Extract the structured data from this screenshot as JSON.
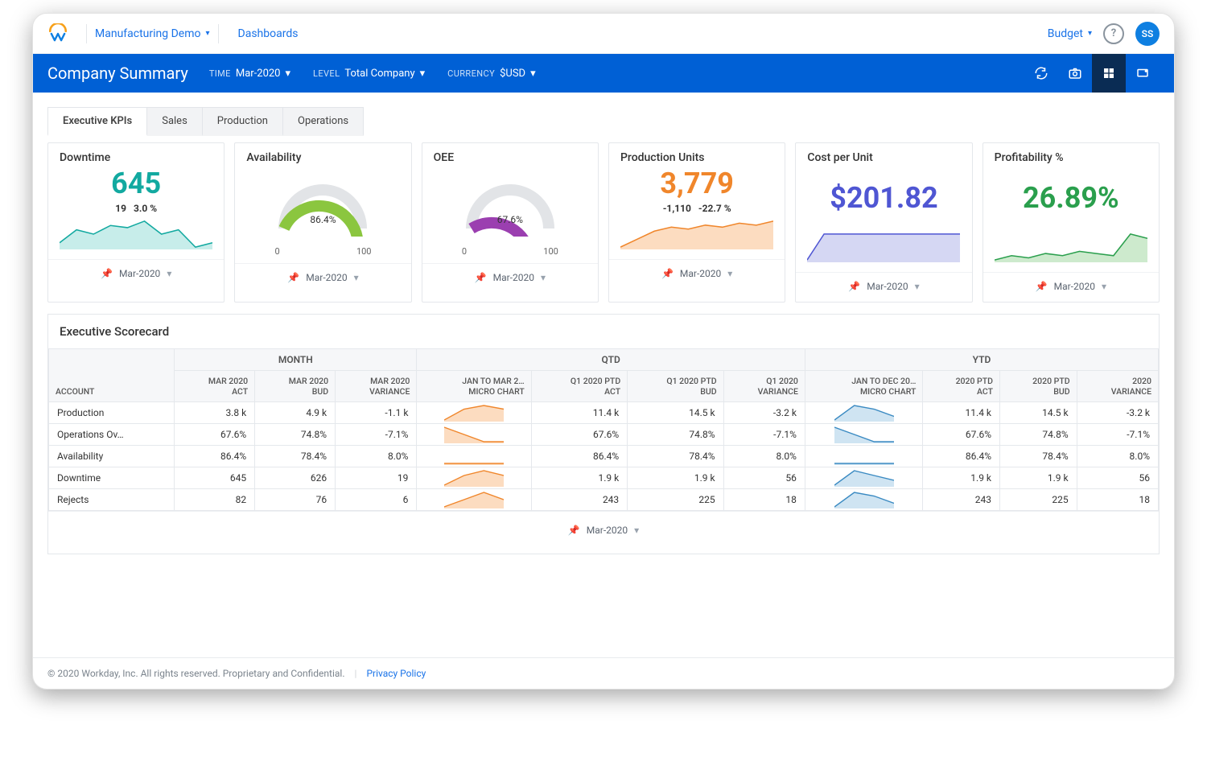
{
  "header": {
    "demo_label": "Manufacturing Demo",
    "crumb": "Dashboards",
    "budget_label": "Budget",
    "avatar_initials": "SS"
  },
  "bluebar": {
    "title": "Company Summary",
    "filter_time_label": "TIME",
    "filter_time_value": "Mar-2020",
    "filter_level_label": "LEVEL",
    "filter_level_value": "Total Company",
    "filter_currency_label": "CURRENCY",
    "filter_currency_value": "$USD"
  },
  "tabs": [
    {
      "label": "Executive KPIs",
      "active": true
    },
    {
      "label": "Sales",
      "active": false
    },
    {
      "label": "Production",
      "active": false
    },
    {
      "label": "Operations",
      "active": false
    }
  ],
  "kpi_footer": {
    "pin_color": "#1a73e8",
    "period": "Mar-2020"
  },
  "kpi": {
    "downtime": {
      "title": "Downtime",
      "value": "645",
      "color": "#12a9a0",
      "delta_abs": "19",
      "delta_pct": "3.0 %",
      "spark": {
        "points": [
          20,
          26,
          24,
          28,
          27,
          30,
          24,
          26,
          18,
          20
        ],
        "stroke": "#12a9a0",
        "fill": "#c7edea"
      }
    },
    "availability": {
      "title": "Availability",
      "value": "86.4%",
      "gauge_pct": 86.4,
      "gauge_fill": "#8bc63f",
      "gauge_track": "#e2e4e7",
      "tick_min": "0",
      "tick_max": "100"
    },
    "oee": {
      "title": "OEE",
      "value": "67.6%",
      "gauge_pct": 67.6,
      "gauge_fill": "#9b3fb0",
      "gauge_track": "#e2e4e7",
      "tick_min": "0",
      "tick_max": "100"
    },
    "units": {
      "title": "Production Units",
      "value": "3,779",
      "color": "#f0862b",
      "delta_abs": "-1,110",
      "delta_pct": "-22.7 %",
      "spark": {
        "points": [
          18,
          22,
          26,
          28,
          27,
          29,
          28,
          30,
          29,
          31
        ],
        "stroke": "#f0862b",
        "fill": "#fcdcc0"
      }
    },
    "cost": {
      "title": "Cost per Unit",
      "value": "$201.82",
      "color": "#4f56d3",
      "spark": {
        "points": [
          8,
          26,
          26,
          26,
          26,
          26,
          26,
          26,
          26,
          26
        ],
        "stroke": "#4f56d3",
        "fill": "#d5d7f3"
      }
    },
    "profit": {
      "title": "Profitability %",
      "value": "26.89%",
      "color": "#2a9f4d",
      "spark": {
        "points": [
          18,
          20,
          19,
          21,
          20,
          22,
          21,
          20,
          30,
          28
        ],
        "stroke": "#2a9f4d",
        "fill": "#cdeacd"
      }
    }
  },
  "scorecard": {
    "title": "Executive Scorecard",
    "groups": [
      "MONTH",
      "QTD",
      "YTD"
    ],
    "account_header": "ACCOUNT",
    "subheaders": {
      "month": [
        "MAR 2020\nACT",
        "MAR 2020\nBUD",
        "MAR 2020\nVARIANCE"
      ],
      "qtd": [
        "JAN TO MAR 2…\nMICRO CHART",
        "Q1 2020 PTD\nACT",
        "Q1 2020 PTD\nBUD",
        "Q1 2020\nVARIANCE"
      ],
      "ytd": [
        "JAN TO DEC 20…\nMICRO CHART",
        "2020 PTD\nACT",
        "2020 PTD\nBUD",
        "2020\nVARIANCE"
      ]
    },
    "micro_colors": {
      "qtd_stroke": "#f0862b",
      "qtd_fill": "#fcdcc0",
      "ytd_stroke": "#3a8ac2",
      "ytd_fill": "#cfe4f2"
    },
    "rows": [
      {
        "account": "Production",
        "m_act": "3.8 k",
        "m_bud": "4.9 k",
        "m_var": "-1.1 k",
        "q_act": "11.4 k",
        "q_bud": "14.5 k",
        "q_var": "-3.2 k",
        "y_act": "11.4 k",
        "y_bud": "14.5 k",
        "y_var": "-3.2 k",
        "q_spark": [
          16,
          22,
          24,
          22
        ],
        "y_spark": [
          16,
          24,
          22,
          18
        ]
      },
      {
        "account": "Operations Ov…",
        "m_act": "67.6%",
        "m_bud": "74.8%",
        "m_var": "-7.1%",
        "q_act": "67.6%",
        "q_bud": "74.8%",
        "q_var": "-7.1%",
        "y_act": "67.6%",
        "y_bud": "74.8%",
        "y_var": "-7.1%",
        "q_spark": [
          22,
          20,
          18,
          18
        ],
        "y_spark": [
          22,
          20,
          18,
          18
        ]
      },
      {
        "account": "Availability",
        "m_act": "86.4%",
        "m_bud": "78.4%",
        "m_var": "8.0%",
        "q_act": "86.4%",
        "q_bud": "78.4%",
        "q_var": "8.0%",
        "y_act": "86.4%",
        "y_bud": "78.4%",
        "y_var": "8.0%",
        "q_spark": [
          18,
          18,
          18,
          18
        ],
        "y_spark": [
          18,
          18,
          18,
          18
        ]
      },
      {
        "account": "Downtime",
        "m_act": "645",
        "m_bud": "626",
        "m_var": "19",
        "q_act": "1.9 k",
        "q_bud": "1.9 k",
        "q_var": "56",
        "y_act": "1.9 k",
        "y_bud": "1.9 k",
        "y_var": "56",
        "q_spark": [
          18,
          22,
          24,
          22
        ],
        "y_spark": [
          18,
          24,
          22,
          20
        ]
      },
      {
        "account": "Rejects",
        "m_act": "82",
        "m_bud": "76",
        "m_var": "6",
        "q_act": "243",
        "q_bud": "225",
        "q_var": "18",
        "y_act": "243",
        "y_bud": "225",
        "y_var": "18",
        "q_spark": [
          18,
          20,
          22,
          20
        ],
        "y_spark": [
          16,
          24,
          22,
          18
        ]
      }
    ],
    "footer_period": "Mar-2020"
  },
  "footer": {
    "copyright": "© 2020 Workday, Inc. All rights reserved. Proprietary and Confidential.",
    "privacy": "Privacy Policy"
  }
}
